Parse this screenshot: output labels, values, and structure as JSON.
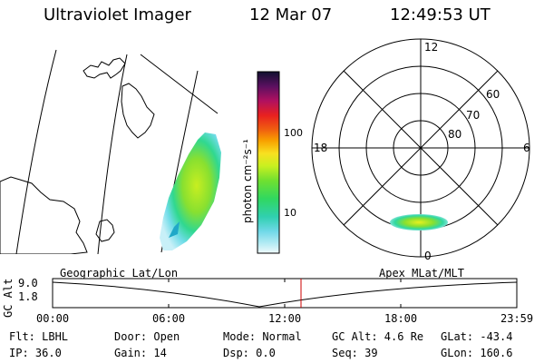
{
  "header": {
    "title": "Ultraviolet Imager",
    "date": "12 Mar 07",
    "time": "12:49:53 UT"
  },
  "colorbar": {
    "label": "photon cm⁻²s⁻¹",
    "tick_100": "100",
    "tick_10": "10"
  },
  "polar_plot": {
    "mlt_top": "12",
    "mlt_left": "18",
    "mlt_right": "6",
    "mlt_bottom": "0",
    "lat_60": "60",
    "lat_70": "70",
    "lat_80": "80"
  },
  "altitude_plot": {
    "left_title": "Geographic Lat/Lon",
    "right_title": "Apex MLat/MLT",
    "ylabel": "GC Alt",
    "y_max": "9.0",
    "y_min": "1.8",
    "x_ticks": [
      "00:00",
      "06:00",
      "12:00",
      "18:00",
      "23:59"
    ]
  },
  "status": {
    "row1": {
      "flt": "Flt: LBHL",
      "door": "Door: Open",
      "mode": "Mode: Normal",
      "gcalt": "GC Alt: 4.6 Re",
      "glat": "GLat: -43.4"
    },
    "row2": {
      "ip": "IP: 36.0",
      "gain": "Gain: 14",
      "dsp": "Dsp:    0.0",
      "seq": "Seq: 39",
      "glon": "GLon: 160.6"
    }
  },
  "colors": {
    "accent_marker": "#cc0000"
  }
}
